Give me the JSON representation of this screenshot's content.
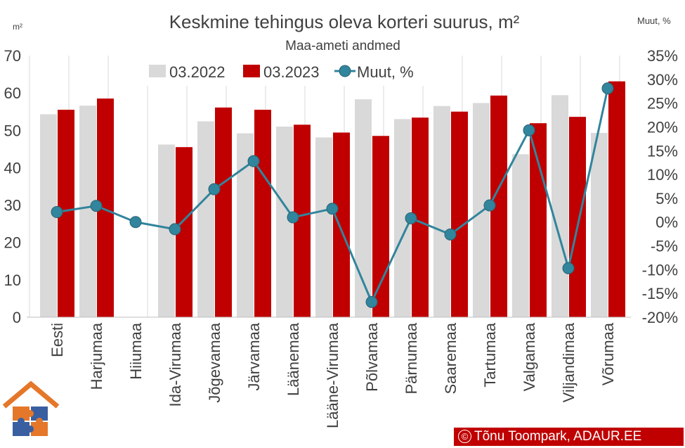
{
  "chart_data": {
    "type": "bar",
    "title": "Keskmine tehingus oleva korteri suurus, m²",
    "subtitle": "Maa-ameti andmed",
    "left_axis_unit": "m²",
    "right_axis_unit": "Muut, %",
    "categories": [
      "Eesti",
      "Harjumaa",
      "Hiiumaa",
      "Ida-Virumaa",
      "Jõgevamaa",
      "Järvamaa",
      "Läänemaa",
      "Lääne-Virumaa",
      "Põlvamaa",
      "Pärnumaa",
      "Saaremaa",
      "Tartumaa",
      "Valgamaa",
      "Viljandimaa",
      "Võrumaa"
    ],
    "series": [
      {
        "name": "03.2022",
        "kind": "bar",
        "axis": "left",
        "color": "#d9d9d9",
        "values": [
          54.3,
          56.6,
          null,
          46.2,
          52.4,
          49.2,
          51.0,
          48.1,
          58.3,
          53.0,
          56.5,
          57.3,
          43.6,
          59.4,
          49.3
        ]
      },
      {
        "name": "03.2023",
        "kind": "bar",
        "axis": "left",
        "color": "#c00000",
        "values": [
          55.5,
          58.5,
          null,
          45.5,
          56.1,
          55.5,
          51.5,
          49.4,
          48.5,
          53.4,
          55.0,
          59.3,
          51.9,
          53.6,
          63.1
        ]
      },
      {
        "name": "Muut, %",
        "kind": "line",
        "axis": "right",
        "color": "#31859c",
        "values": [
          2.1,
          3.4,
          0.0,
          -1.5,
          6.9,
          12.8,
          1.0,
          2.8,
          -16.8,
          0.8,
          -2.6,
          3.5,
          19.3,
          -9.7,
          28.1
        ]
      }
    ],
    "y_left": {
      "min": 0,
      "max": 70,
      "ticks": [
        "0",
        "10",
        "20",
        "30",
        "40",
        "50",
        "60",
        "70"
      ]
    },
    "y_right": {
      "min": -20,
      "max": 35,
      "ticks": [
        "-20%",
        "-15%",
        "-10%",
        "-5%",
        "0%",
        "5%",
        "10%",
        "15%",
        "20%",
        "25%",
        "30%",
        "35%"
      ]
    },
    "grid": "vertical",
    "legend": "top-center"
  },
  "credit": {
    "symbol": "©",
    "text": "Tõnu Toompark, ADAUR.EE"
  },
  "colors": {
    "bar_2022": "#d9d9d9",
    "bar_2023": "#c00000",
    "line": "#31859c",
    "grid": "#d9d9d9",
    "text": "#404040",
    "logo_orange": "#e5772a",
    "logo_blue": "#3a5fa0"
  }
}
